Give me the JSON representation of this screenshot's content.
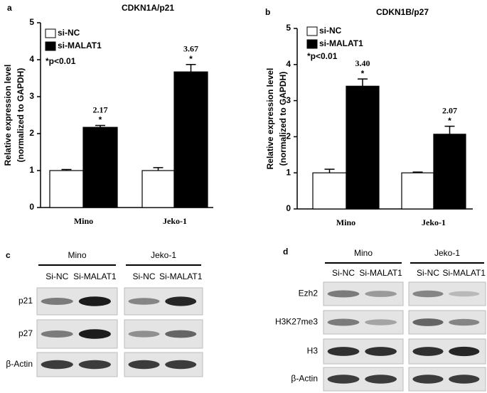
{
  "chart_data": [
    {
      "type": "bar",
      "panel": "a",
      "title": "CDKN1A/p21",
      "ylabel": [
        "Relative expression level",
        "(normalized to GAPDH)"
      ],
      "categories": [
        "Mino",
        "Jeko-1"
      ],
      "series": [
        {
          "name": "si-NC",
          "color": "#ffffff",
          "values": [
            1,
            1
          ],
          "errors": [
            0.03,
            0.08
          ]
        },
        {
          "name": "si-MALAT1",
          "color": "#000000",
          "values": [
            2.17,
            3.67
          ],
          "errors": [
            0.05,
            0.2
          ],
          "annotations": [
            "*",
            "*"
          ]
        }
      ],
      "note": "*p<0.01",
      "ylim": [
        0,
        5
      ],
      "yticks": [
        0,
        1,
        2,
        3,
        4,
        5
      ]
    },
    {
      "type": "bar",
      "panel": "b",
      "title": "CDKN1B/p27",
      "ylabel": [
        "Relative expression level",
        "(normalized to GAPDH)"
      ],
      "categories": [
        "Mino",
        "Jeko-1"
      ],
      "series": [
        {
          "name": "si-NC",
          "color": "#ffffff",
          "values": [
            1,
            1
          ],
          "errors": [
            0.1,
            0.02
          ]
        },
        {
          "name": "si-MALAT1",
          "color": "#000000",
          "values": [
            3.4,
            2.07
          ],
          "value_labels": [
            "3.40",
            "2.07"
          ],
          "errors": [
            0.2,
            0.22
          ],
          "annotations": [
            "*",
            "*"
          ]
        }
      ],
      "note": "*p<0.01",
      "ylim": [
        0,
        5
      ],
      "yticks": [
        0,
        1,
        2,
        3,
        4,
        5
      ]
    }
  ],
  "blots": [
    {
      "panel": "c",
      "groups": [
        {
          "name": "Mino",
          "lanes": [
            "Si-NC",
            "Si-MALAT1"
          ]
        },
        {
          "name": "Jeko-1",
          "lanes": [
            "Si-NC",
            "Si-MALAT1"
          ]
        }
      ],
      "rows": [
        "p21",
        "p27",
        "β-Actin"
      ]
    },
    {
      "panel": "d",
      "groups": [
        {
          "name": "Mino",
          "lanes": [
            "Si-NC",
            "Si-MALAT1"
          ]
        },
        {
          "name": "Jeko-1",
          "lanes": [
            "Si-NC",
            "Si-MALAT1"
          ]
        }
      ],
      "rows": [
        "Ezh2",
        "H3K27me3",
        "H3",
        "β-Actin"
      ]
    }
  ]
}
